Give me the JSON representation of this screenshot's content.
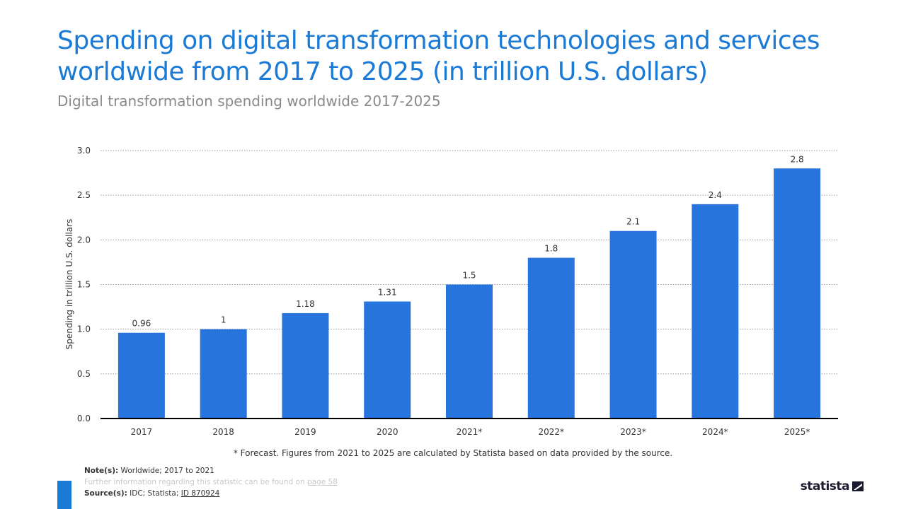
{
  "header": {
    "title": "Spending on digital transformation technologies and services worldwide from 2017 to 2025 (in trillion U.S. dollars)",
    "subtitle": "Digital transformation spending worldwide 2017-2025"
  },
  "chart_data": {
    "type": "bar",
    "categories": [
      "2017",
      "2018",
      "2019",
      "2020",
      "2021*",
      "2022*",
      "2023*",
      "2024*",
      "2025*"
    ],
    "values": [
      0.96,
      1,
      1.18,
      1.31,
      1.5,
      1.8,
      2.1,
      2.4,
      2.8
    ],
    "value_labels": [
      "0.96",
      "1",
      "1.18",
      "1.31",
      "1.5",
      "1.8",
      "2.1",
      "2.4",
      "2.8"
    ],
    "ylabel": "Spending in trillion U.S. dollars",
    "ylim": [
      0,
      3.0
    ],
    "yticks": [
      "0.0",
      "0.5",
      "1.0",
      "1.5",
      "2.0",
      "2.5",
      "3.0"
    ],
    "grid": true,
    "bar_color": "#2774dc"
  },
  "footnote": "* Forecast. Figures from 2021 to 2025 are calculated by Statista based on data provided by the source.",
  "notes": {
    "note_label": "Note(s):",
    "note_text": "Worldwide; 2017 to 2021",
    "further_text": "Further information regarding this statistic can be found on",
    "further_link": "page 58",
    "source_label": "Source(s):",
    "source_text": "IDC; Statista;",
    "source_link": "ID 870924"
  },
  "brand": {
    "logo_text": "statista",
    "accent_color": "#1a7ad6"
  }
}
